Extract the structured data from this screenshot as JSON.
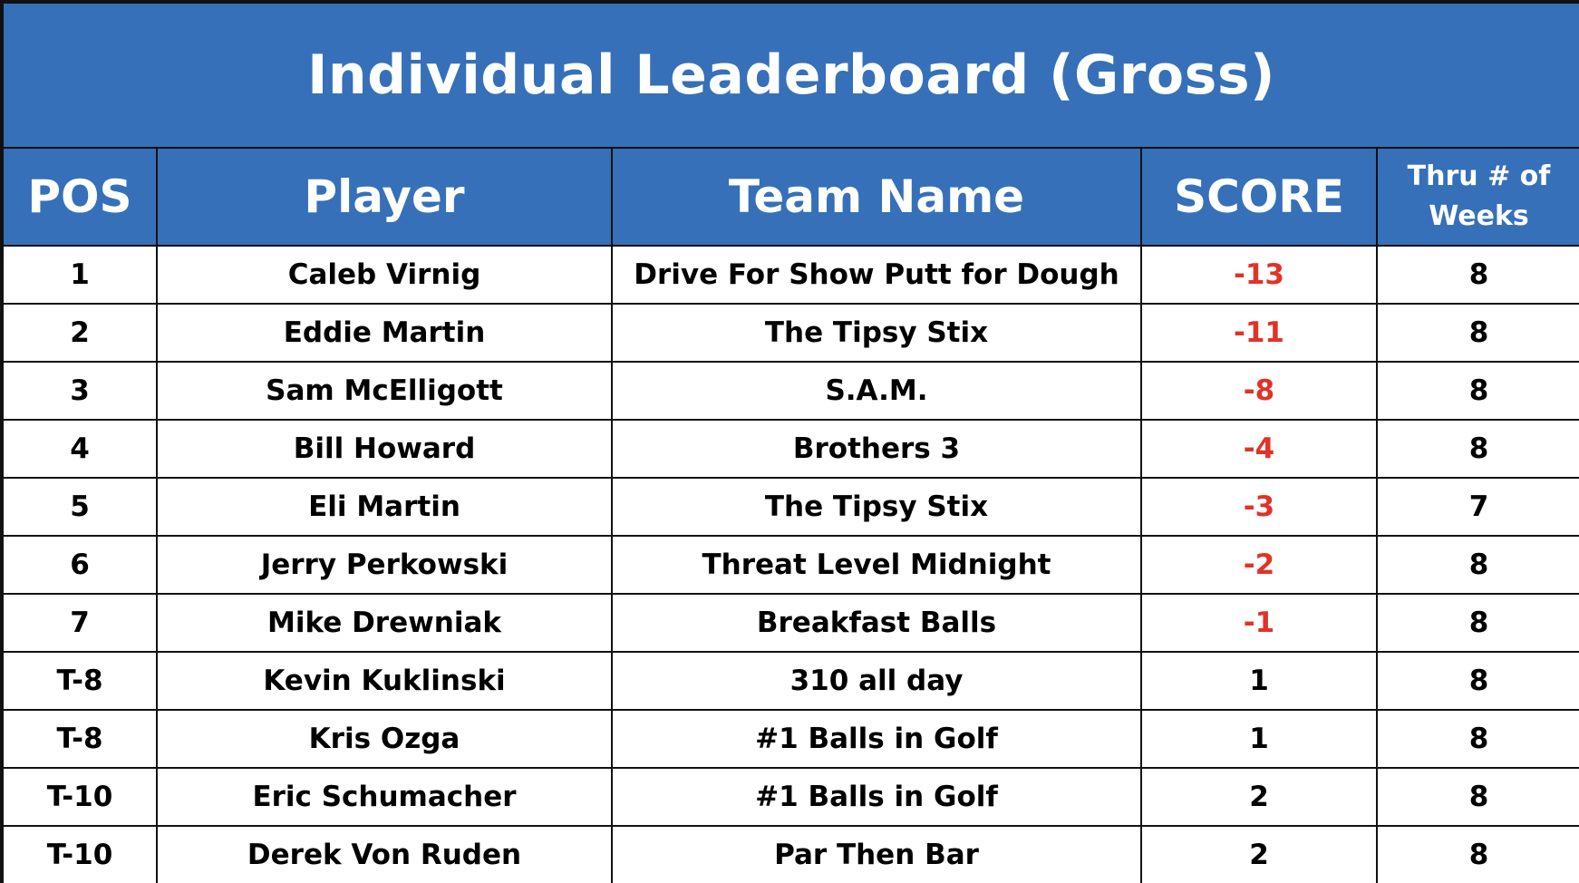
{
  "title": "Individual Leaderboard (Gross)",
  "headers": {
    "pos": "POS",
    "player": "Player",
    "team": "Team Name",
    "score": "SCORE",
    "thru_line1": "Thru # of",
    "thru_line2": "Weeks"
  },
  "colors": {
    "header_bg": "#3670b9",
    "header_text": "#ffffff",
    "under_par": "#e03327",
    "default_text": "#000000"
  },
  "rows": [
    {
      "pos": "1",
      "player": "Caleb Virnig",
      "team": "Drive For Show Putt for Dough",
      "score": "-13",
      "thru": "8"
    },
    {
      "pos": "2",
      "player": "Eddie Martin",
      "team": "The Tipsy Stix",
      "score": "-11",
      "thru": "8"
    },
    {
      "pos": "3",
      "player": "Sam McElligott",
      "team": "S.A.M.",
      "score": "-8",
      "thru": "8"
    },
    {
      "pos": "4",
      "player": "Bill Howard",
      "team": "Brothers 3",
      "score": "-4",
      "thru": "8"
    },
    {
      "pos": "5",
      "player": "Eli  Martin",
      "team": "The Tipsy Stix",
      "score": "-3",
      "thru": "7"
    },
    {
      "pos": "6",
      "player": "Jerry Perkowski",
      "team": "Threat Level Midnight",
      "score": "-2",
      "thru": "8"
    },
    {
      "pos": "7",
      "player": "Mike Drewniak",
      "team": "Breakfast Balls",
      "score": "-1",
      "thru": "8"
    },
    {
      "pos": "T-8",
      "player": "Kevin Kuklinski",
      "team": "310 all day",
      "score": "1",
      "thru": "8"
    },
    {
      "pos": "T-8",
      "player": "Kris  Ozga",
      "team": "#1 Balls in Golf",
      "score": "1",
      "thru": "8"
    },
    {
      "pos": "T-10",
      "player": "Eric Schumacher",
      "team": "#1 Balls in Golf",
      "score": "2",
      "thru": "8"
    },
    {
      "pos": "T-10",
      "player": "Derek Von Ruden",
      "team": "Par Then Bar",
      "score": "2",
      "thru": "8"
    }
  ]
}
